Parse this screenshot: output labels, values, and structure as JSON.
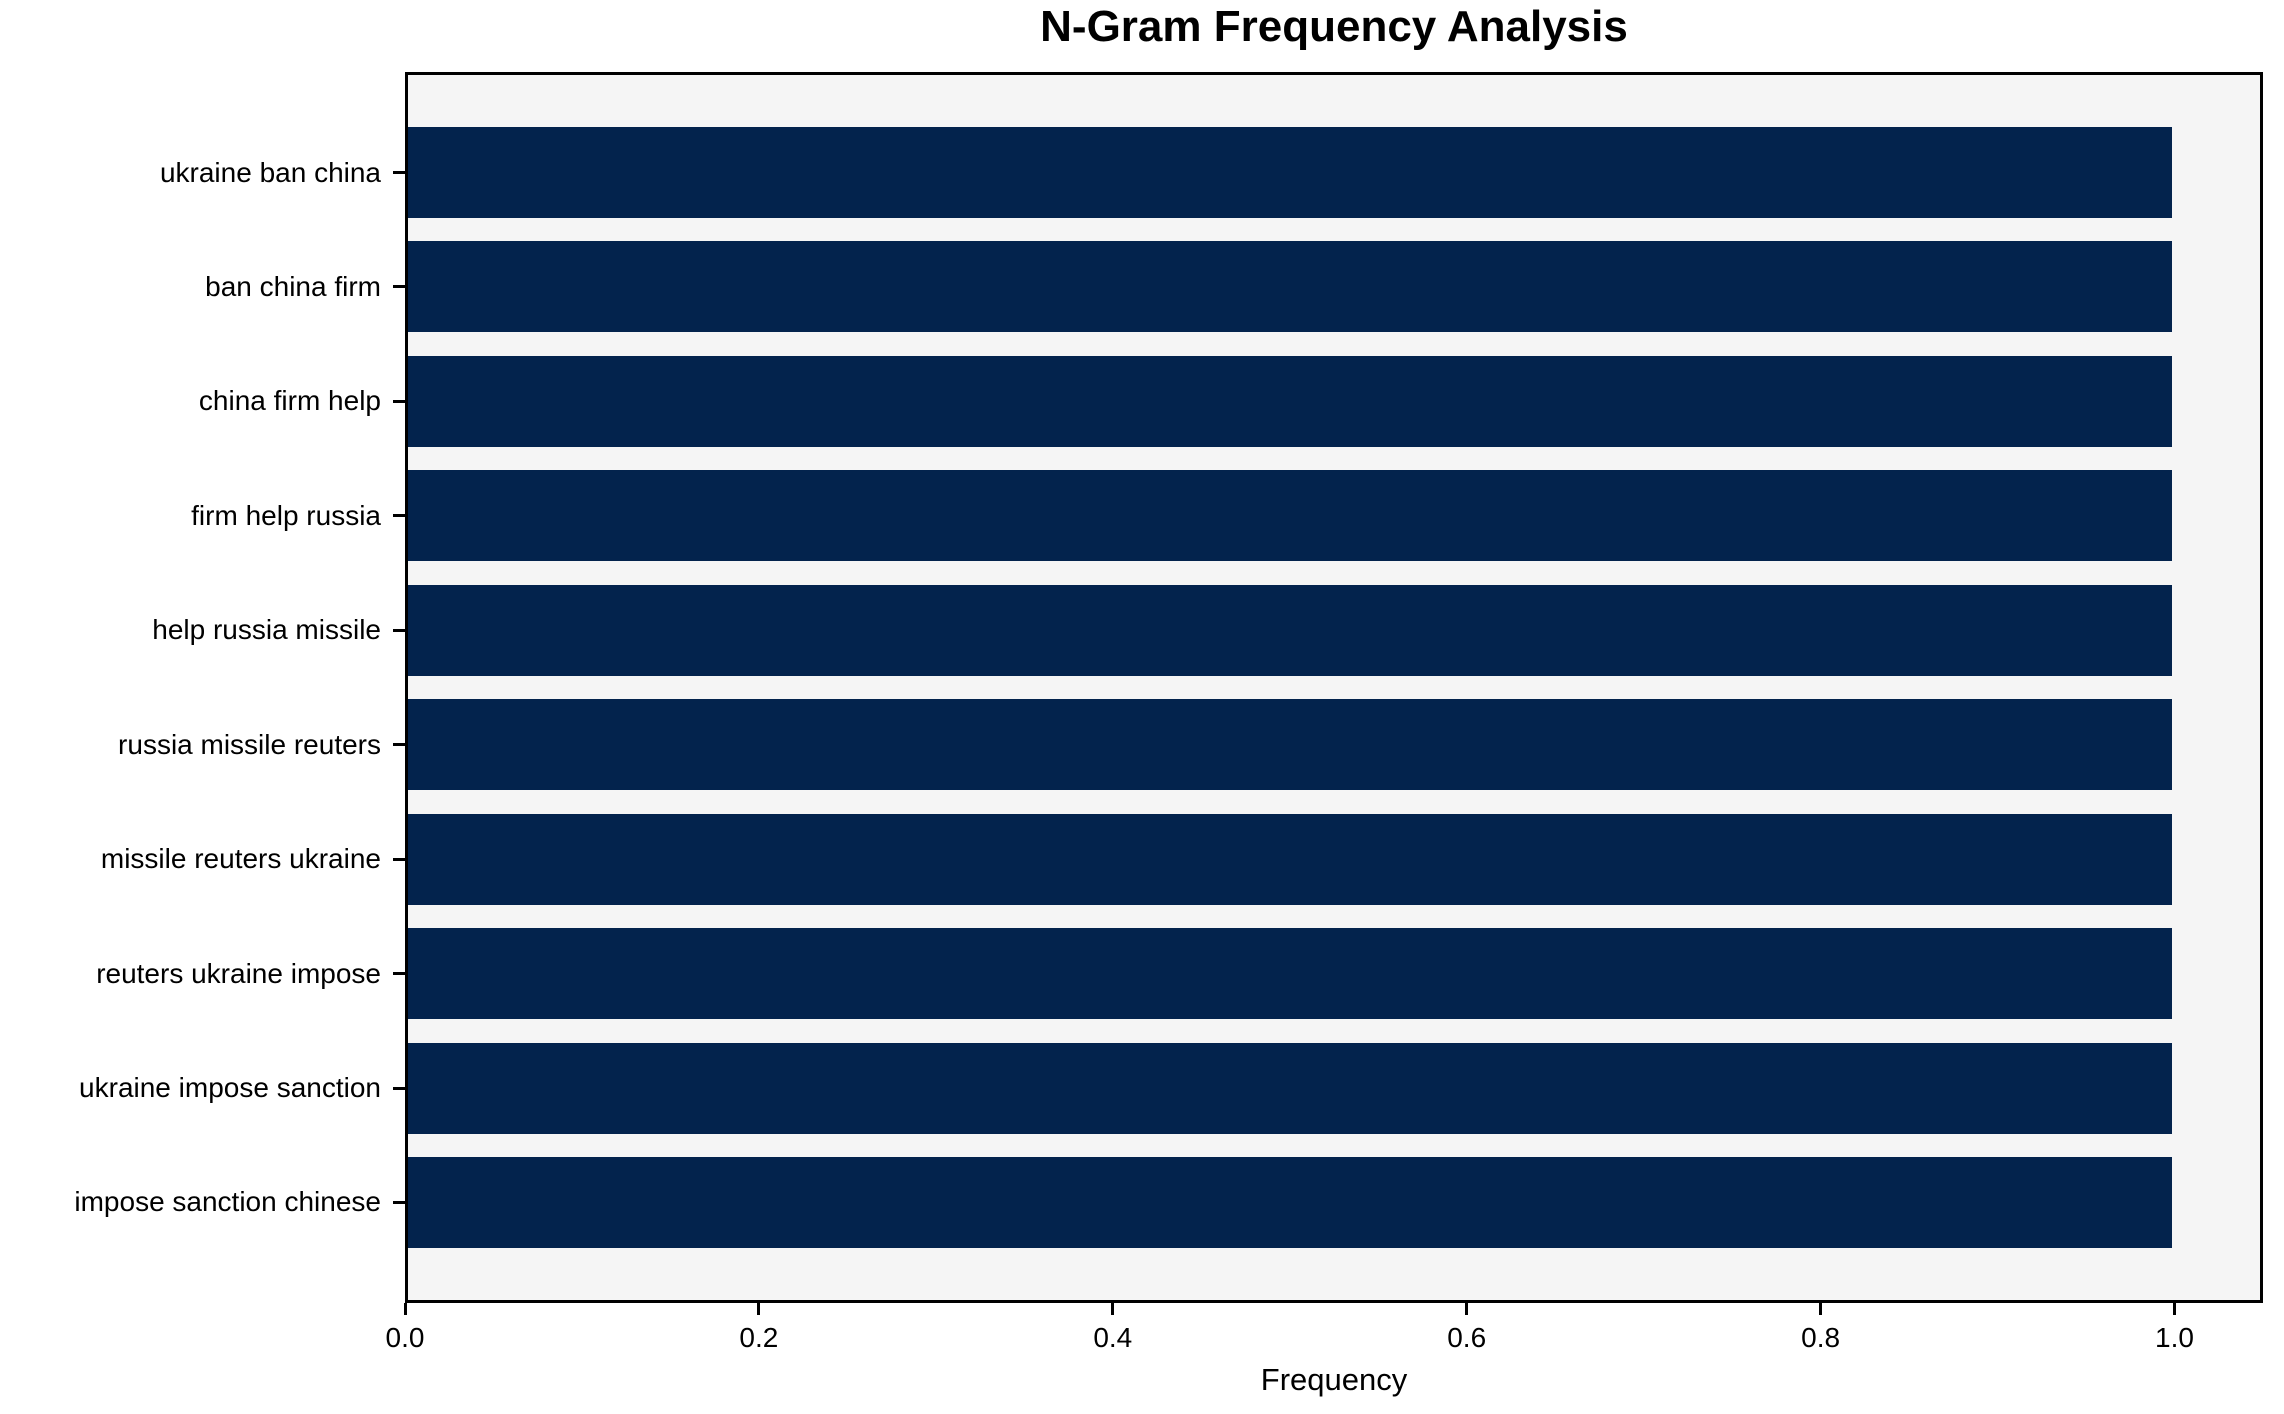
{
  "chart_data": {
    "type": "bar",
    "orientation": "horizontal",
    "title": "N-Gram Frequency Analysis",
    "xlabel": "Frequency",
    "ylabel": "",
    "categories": [
      "ukraine ban china",
      "ban china firm",
      "china firm help",
      "firm help russia",
      "help russia missile",
      "russia missile reuters",
      "missile reuters ukraine",
      "reuters ukraine impose",
      "ukraine impose sanction",
      "impose sanction chinese"
    ],
    "values": [
      1.0,
      1.0,
      1.0,
      1.0,
      1.0,
      1.0,
      1.0,
      1.0,
      1.0,
      1.0
    ],
    "xlim": [
      0,
      1.05
    ],
    "xticks": [
      {
        "value": 0.0,
        "label": "0.0"
      },
      {
        "value": 0.2,
        "label": "0.2"
      },
      {
        "value": 0.4,
        "label": "0.4"
      },
      {
        "value": 0.6,
        "label": "0.6"
      },
      {
        "value": 0.8,
        "label": "0.8"
      },
      {
        "value": 1.0,
        "label": "1.0"
      }
    ],
    "grid": false,
    "legend": "none",
    "colors": {
      "bar": "#03234d",
      "plot_background": "#f5f5f5",
      "figure_background": "#ffffff",
      "spine": "#000000",
      "text": "#000000"
    }
  }
}
